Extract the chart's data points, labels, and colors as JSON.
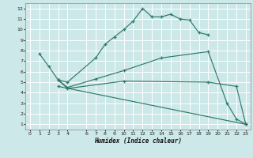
{
  "xlabel": "Humidex (Indice chaleur)",
  "bg_color": "#cce8e8",
  "grid_color": "#ffffff",
  "line_color": "#2d7a6a",
  "xlim": [
    -0.5,
    23.5
  ],
  "ylim": [
    0.5,
    12.5
  ],
  "xticks": [
    0,
    1,
    2,
    3,
    4,
    6,
    7,
    8,
    9,
    10,
    11,
    12,
    13,
    14,
    15,
    16,
    17,
    18,
    19,
    20,
    21,
    22,
    23
  ],
  "yticks": [
    1,
    2,
    3,
    4,
    5,
    6,
    7,
    8,
    9,
    10,
    11,
    12
  ],
  "line1_x": [
    1,
    2,
    3,
    4,
    7,
    8,
    9,
    10,
    11,
    12,
    13,
    14,
    15,
    16,
    17,
    18,
    19
  ],
  "line1_y": [
    7.7,
    6.5,
    5.2,
    5.0,
    7.3,
    8.6,
    9.3,
    10.0,
    10.8,
    12.0,
    11.2,
    11.2,
    11.45,
    11.0,
    10.9,
    9.7,
    9.5
  ],
  "line2_x": [
    3,
    4,
    7,
    10,
    14,
    19,
    21,
    22,
    23
  ],
  "line2_y": [
    5.2,
    4.5,
    5.3,
    6.1,
    7.3,
    7.9,
    3.0,
    1.5,
    1.0
  ],
  "line3_x": [
    3,
    4,
    10,
    19,
    22,
    23
  ],
  "line3_y": [
    5.2,
    4.4,
    5.1,
    5.0,
    4.6,
    1.0
  ],
  "line4_x": [
    3,
    23
  ],
  "line4_y": [
    4.6,
    1.0
  ]
}
